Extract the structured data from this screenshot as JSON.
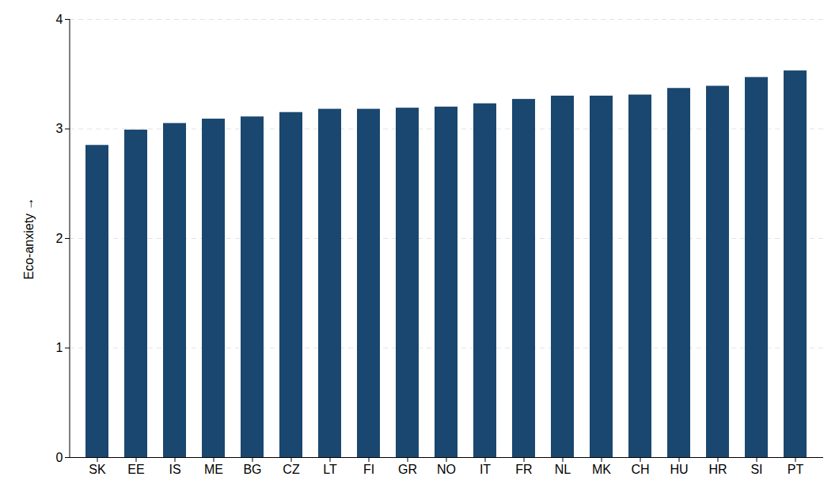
{
  "chart_data": {
    "type": "bar",
    "y_label": "Eco-anxiety",
    "categories": [
      "SK",
      "EE",
      "IS",
      "ME",
      "BG",
      "CZ",
      "LT",
      "FI",
      "GR",
      "NO",
      "IT",
      "FR",
      "NL",
      "MK",
      "CH",
      "HU",
      "HR",
      "SI",
      "PT"
    ],
    "values": [
      2.85,
      2.99,
      3.05,
      3.09,
      3.11,
      3.15,
      3.18,
      3.18,
      3.19,
      3.2,
      3.23,
      3.27,
      3.3,
      3.3,
      3.31,
      3.37,
      3.39,
      3.47,
      3.53
    ],
    "color": "#1a476f",
    "ylim": [
      0,
      4
    ],
    "yticks": [
      0,
      1,
      2,
      3,
      4
    ],
    "grid": true
  }
}
